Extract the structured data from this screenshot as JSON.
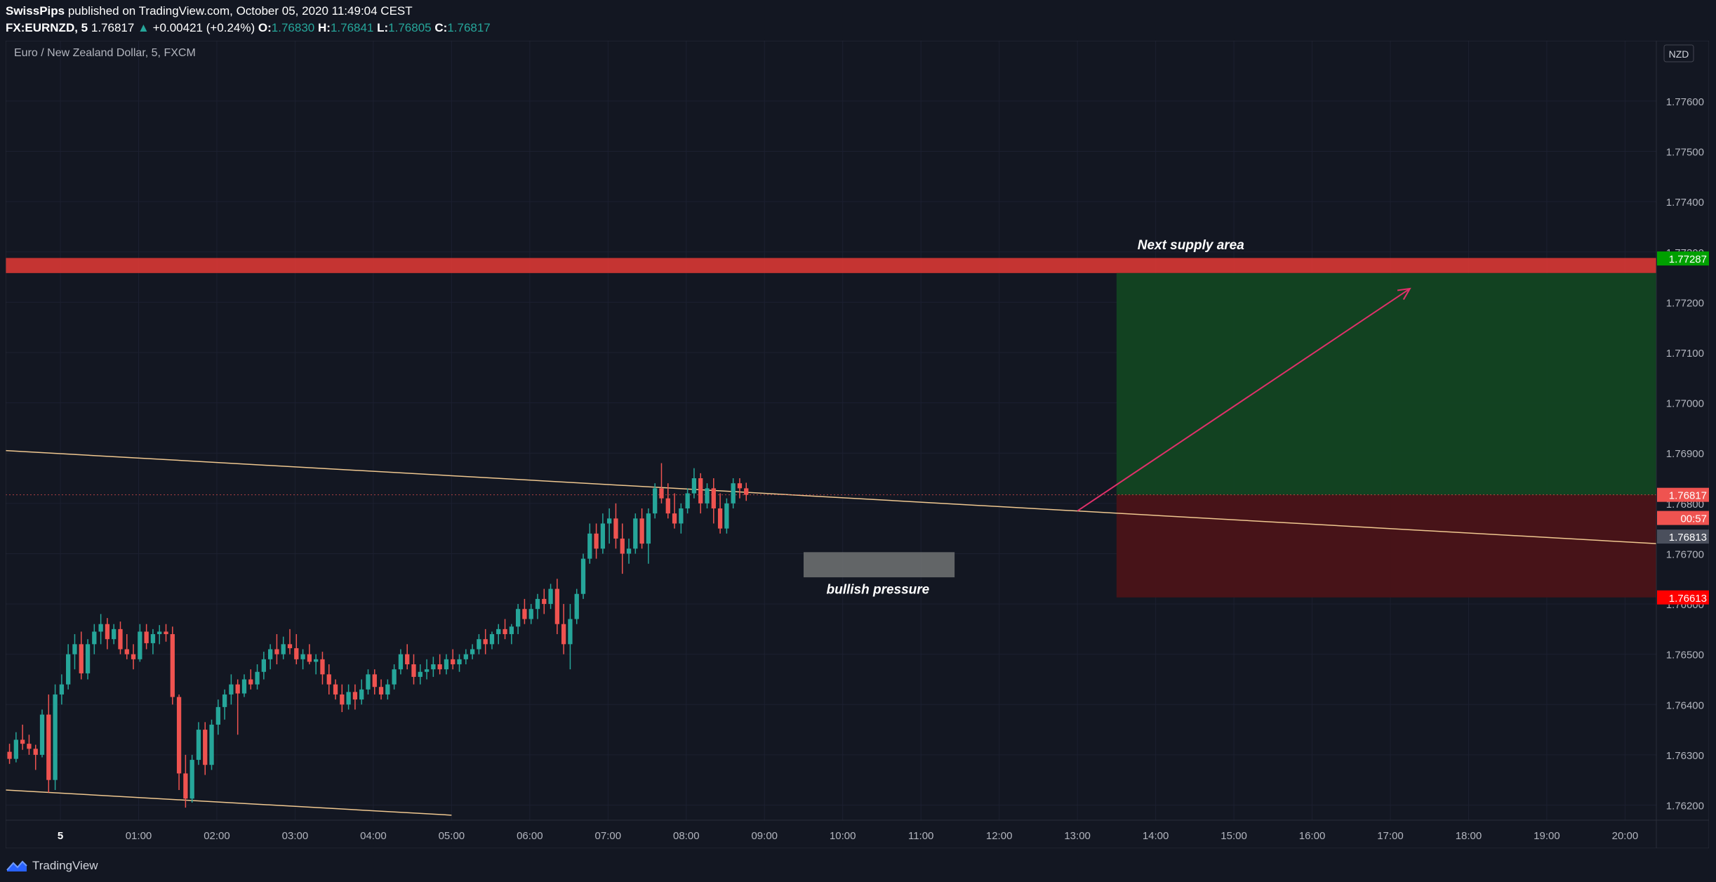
{
  "header": {
    "author": "SwissPips",
    "published_text": "published on TradingView.com, October 05, 2020 11:49:04 CEST",
    "symbol": "FX:EURNZD, 5",
    "last": "1.76817",
    "change_arrow": "▲",
    "change": "+0.00421 (+0.24%)",
    "o_label": "O:",
    "o_value": "1.76830",
    "h_label": "H:",
    "h_value": "1.76841",
    "l_label": "L:",
    "l_value": "1.76805",
    "c_label": "C:",
    "c_value": "1.76817"
  },
  "footer": {
    "brand": "TradingView"
  },
  "chart_data": {
    "type": "candlestick",
    "title": "Euro / New Zealand Dollar, 5, FXCM",
    "currency": "NZD",
    "x_ticks": [
      "5",
      "01:00",
      "02:00",
      "03:00",
      "04:00",
      "05:00",
      "06:00",
      "07:00",
      "08:00",
      "09:00",
      "10:00",
      "11:00",
      "12:00",
      "13:00",
      "14:00",
      "15:00",
      "16:00",
      "17:00",
      "18:00",
      "19:00",
      "20:00"
    ],
    "y_ticks": [
      "1.77600",
      "1.77500",
      "1.77400",
      "1.77300",
      "1.77200",
      "1.77100",
      "1.77000",
      "1.76900",
      "1.76800",
      "1.76700",
      "1.76600",
      "1.76500",
      "1.76400",
      "1.76300",
      "1.76200"
    ],
    "x_range_hours": [
      -0.7,
      20.4
    ],
    "y_range": [
      1.7617,
      1.7772
    ],
    "grid": true,
    "price_labels": [
      {
        "text": "1.77287",
        "price": 1.77287,
        "color": "#00a000"
      },
      {
        "text": "1.76817",
        "price": 1.76817,
        "color": "#ef5350"
      },
      {
        "text": "00:57",
        "price": 1.76771,
        "color": "#ef5350"
      },
      {
        "text": "1.76813",
        "price": 1.76734,
        "color": "#4a4f5c"
      },
      {
        "text": "1.76613",
        "price": 1.76613,
        "color": "#ff0000"
      }
    ],
    "candles": [
      [
        1.76306,
        1.76322,
        1.76282,
        1.76292
      ],
      [
        1.76292,
        1.76345,
        1.76285,
        1.7633
      ],
      [
        1.7633,
        1.7636,
        1.7631,
        1.76322
      ],
      [
        1.76322,
        1.7634,
        1.763,
        1.76312
      ],
      [
        1.76312,
        1.7632,
        1.7627,
        1.763
      ],
      [
        1.763,
        1.7639,
        1.76295,
        1.7638
      ],
      [
        1.7638,
        1.7642,
        1.76225,
        1.7625
      ],
      [
        1.7625,
        1.7644,
        1.7623,
        1.7642
      ],
      [
        1.7642,
        1.7646,
        1.764,
        1.7644
      ],
      [
        1.7644,
        1.7652,
        1.7643,
        1.765
      ],
      [
        1.765,
        1.7654,
        1.7647,
        1.7652
      ],
      [
        1.7652,
        1.76545,
        1.7645,
        1.76462
      ],
      [
        1.76462,
        1.7653,
        1.7645,
        1.7652
      ],
      [
        1.7652,
        1.7656,
        1.765,
        1.76545
      ],
      [
        1.76545,
        1.7658,
        1.7652,
        1.7656
      ],
      [
        1.7656,
        1.76572,
        1.7651,
        1.7653
      ],
      [
        1.7653,
        1.7656,
        1.7652,
        1.7655
      ],
      [
        1.7655,
        1.76565,
        1.765,
        1.7651
      ],
      [
        1.7651,
        1.7654,
        1.7649,
        1.765
      ],
      [
        1.765,
        1.7652,
        1.7647,
        1.7649
      ],
      [
        1.7649,
        1.7656,
        1.76485,
        1.76545
      ],
      [
        1.76545,
        1.7656,
        1.7651,
        1.76522
      ],
      [
        1.76522,
        1.7655,
        1.765,
        1.7654
      ],
      [
        1.7654,
        1.76558,
        1.7652,
        1.76545
      ],
      [
        1.76545,
        1.7656,
        1.76525,
        1.7654
      ],
      [
        1.7654,
        1.76555,
        1.764,
        1.76415
      ],
      [
        1.76415,
        1.7642,
        1.7623,
        1.76263
      ],
      [
        1.76263,
        1.763,
        1.76195,
        1.76213
      ],
      [
        1.76213,
        1.763,
        1.76205,
        1.7629
      ],
      [
        1.7629,
        1.76365,
        1.7628,
        1.7635
      ],
      [
        1.7635,
        1.76365,
        1.7626,
        1.7628
      ],
      [
        1.7628,
        1.7637,
        1.7627,
        1.7636
      ],
      [
        1.7636,
        1.7641,
        1.7634,
        1.76395
      ],
      [
        1.76395,
        1.7643,
        1.7637,
        1.7642
      ],
      [
        1.7642,
        1.7646,
        1.764,
        1.7644
      ],
      [
        1.7644,
        1.7645,
        1.7634,
        1.76422
      ],
      [
        1.76422,
        1.7646,
        1.76415,
        1.7645
      ],
      [
        1.7645,
        1.7647,
        1.7643,
        1.7644
      ],
      [
        1.7644,
        1.7648,
        1.7643,
        1.76465
      ],
      [
        1.76465,
        1.76505,
        1.7645,
        1.7649
      ],
      [
        1.7649,
        1.7652,
        1.7647,
        1.7651
      ],
      [
        1.7651,
        1.7654,
        1.7648,
        1.765
      ],
      [
        1.765,
        1.76535,
        1.7649,
        1.7652
      ],
      [
        1.7652,
        1.7655,
        1.765,
        1.76512
      ],
      [
        1.76512,
        1.7654,
        1.7648,
        1.7649
      ],
      [
        1.7649,
        1.7651,
        1.7647,
        1.765
      ],
      [
        1.765,
        1.7652,
        1.7648,
        1.76485
      ],
      [
        1.76485,
        1.765,
        1.7646,
        1.7649
      ],
      [
        1.7649,
        1.76505,
        1.7644,
        1.7646
      ],
      [
        1.7646,
        1.7648,
        1.7642,
        1.7644
      ],
      [
        1.7644,
        1.7645,
        1.7641,
        1.7642
      ],
      [
        1.7642,
        1.7644,
        1.76385,
        1.764
      ],
      [
        1.764,
        1.7644,
        1.7639,
        1.76425
      ],
      [
        1.76425,
        1.7644,
        1.7639,
        1.7641
      ],
      [
        1.7641,
        1.7645,
        1.764,
        1.7643
      ],
      [
        1.7643,
        1.7647,
        1.7642,
        1.7646
      ],
      [
        1.7646,
        1.7647,
        1.7642,
        1.76435
      ],
      [
        1.76435,
        1.7645,
        1.7641,
        1.7642
      ],
      [
        1.7642,
        1.7645,
        1.7641,
        1.7644
      ],
      [
        1.7644,
        1.7648,
        1.7643,
        1.7647
      ],
      [
        1.7647,
        1.7651,
        1.7646,
        1.765
      ],
      [
        1.765,
        1.7652,
        1.7647,
        1.7648
      ],
      [
        1.7648,
        1.765,
        1.7644,
        1.76455
      ],
      [
        1.76455,
        1.7648,
        1.7644,
        1.76465
      ],
      [
        1.76465,
        1.7649,
        1.7645,
        1.7647
      ],
      [
        1.7647,
        1.76495,
        1.76455,
        1.7648
      ],
      [
        1.7648,
        1.765,
        1.7646,
        1.7647
      ],
      [
        1.7647,
        1.765,
        1.7646,
        1.7649
      ],
      [
        1.7649,
        1.7651,
        1.7647,
        1.7648
      ],
      [
        1.7648,
        1.765,
        1.76465,
        1.7649
      ],
      [
        1.7649,
        1.7651,
        1.7648,
        1.765
      ],
      [
        1.765,
        1.7652,
        1.7649,
        1.7651
      ],
      [
        1.7651,
        1.7654,
        1.765,
        1.7653
      ],
      [
        1.7653,
        1.7655,
        1.765,
        1.7652
      ],
      [
        1.7652,
        1.76545,
        1.7651,
        1.7654
      ],
      [
        1.7654,
        1.7656,
        1.7652,
        1.7655
      ],
      [
        1.7655,
        1.7657,
        1.7653,
        1.7654
      ],
      [
        1.7654,
        1.7656,
        1.7652,
        1.76555
      ],
      [
        1.76555,
        1.766,
        1.7654,
        1.7659
      ],
      [
        1.7659,
        1.7661,
        1.7656,
        1.7657
      ],
      [
        1.7657,
        1.766,
        1.7656,
        1.7659
      ],
      [
        1.7659,
        1.7662,
        1.7657,
        1.7661
      ],
      [
        1.7661,
        1.7663,
        1.7658,
        1.766
      ],
      [
        1.766,
        1.7664,
        1.7659,
        1.7663
      ],
      [
        1.7663,
        1.7665,
        1.7654,
        1.7656
      ],
      [
        1.7656,
        1.766,
        1.765,
        1.7652
      ],
      [
        1.7652,
        1.766,
        1.7647,
        1.7657
      ],
      [
        1.7657,
        1.7663,
        1.7656,
        1.7662
      ],
      [
        1.7662,
        1.767,
        1.7661,
        1.7669
      ],
      [
        1.7669,
        1.7676,
        1.7668,
        1.7674
      ],
      [
        1.7674,
        1.7676,
        1.7669,
        1.7671
      ],
      [
        1.7671,
        1.7678,
        1.767,
        1.7676
      ],
      [
        1.7676,
        1.7679,
        1.7672,
        1.7677
      ],
      [
        1.7677,
        1.768,
        1.7671,
        1.7673
      ],
      [
        1.7673,
        1.7676,
        1.7666,
        1.767
      ],
      [
        1.767,
        1.7673,
        1.7668,
        1.7671
      ],
      [
        1.7671,
        1.7678,
        1.767,
        1.7677
      ],
      [
        1.7677,
        1.7679,
        1.7671,
        1.7672
      ],
      [
        1.7672,
        1.7679,
        1.7668,
        1.7678
      ],
      [
        1.7678,
        1.7684,
        1.7677,
        1.7683
      ],
      [
        1.7683,
        1.7688,
        1.768,
        1.7681
      ],
      [
        1.7681,
        1.7684,
        1.7677,
        1.7678
      ],
      [
        1.7678,
        1.7682,
        1.7675,
        1.7676
      ],
      [
        1.7676,
        1.768,
        1.7674,
        1.7679
      ],
      [
        1.7679,
        1.7683,
        1.7678,
        1.7682
      ],
      [
        1.7682,
        1.7687,
        1.7681,
        1.7685
      ],
      [
        1.7685,
        1.7686,
        1.7678,
        1.768
      ],
      [
        1.768,
        1.7684,
        1.7679,
        1.7683
      ],
      [
        1.7683,
        1.7685,
        1.7676,
        1.7679
      ],
      [
        1.7679,
        1.7682,
        1.7674,
        1.7675
      ],
      [
        1.7675,
        1.7681,
        1.7674,
        1.768
      ],
      [
        1.768,
        1.7685,
        1.7679,
        1.7684
      ],
      [
        1.7684,
        1.7685,
        1.7681,
        1.7683
      ],
      [
        1.7683,
        1.76841,
        1.76805,
        1.76817
      ]
    ],
    "annotations": [
      {
        "type": "zone",
        "name": "supply",
        "x_range_hours": [
          -0.7,
          20.4
        ],
        "price_range": [
          1.77258,
          1.77288
        ],
        "color": "#e53935"
      },
      {
        "type": "zone",
        "name": "target",
        "x_range_hours": [
          13.5,
          20.4
        ],
        "price_range": [
          1.76817,
          1.77258
        ],
        "color": "#124422"
      },
      {
        "type": "zone",
        "name": "stop",
        "x_range_hours": [
          13.5,
          20.4
        ],
        "price_range": [
          1.76613,
          1.76817
        ],
        "color": "#4a1318"
      },
      {
        "type": "zone",
        "name": "bullish",
        "x_range_hours": [
          9.5,
          11.43
        ],
        "price_range": [
          1.76653,
          1.76703
        ],
        "color": "#6b6e6f"
      },
      {
        "type": "text",
        "text": "Next supply area",
        "x_hours": 14.45,
        "price": 1.77305
      },
      {
        "type": "text",
        "text": "bullish pressure",
        "x_hours": 10.45,
        "price": 1.7662
      },
      {
        "type": "trendline",
        "from": [
          -0.7,
          1.76905
        ],
        "to": [
          20.4,
          1.7672
        ],
        "color": "#f0c890"
      },
      {
        "type": "trendline",
        "from": [
          -0.7,
          1.7623
        ],
        "to": [
          5.0,
          1.7618
        ],
        "color": "#f0c890"
      },
      {
        "type": "arrow",
        "from": [
          13.0,
          1.76785
        ],
        "to": [
          17.25,
          1.77227
        ],
        "color": "#e0306a"
      },
      {
        "type": "hline",
        "price": 1.76817,
        "color": "#ef5350",
        "dotted": true
      }
    ]
  }
}
